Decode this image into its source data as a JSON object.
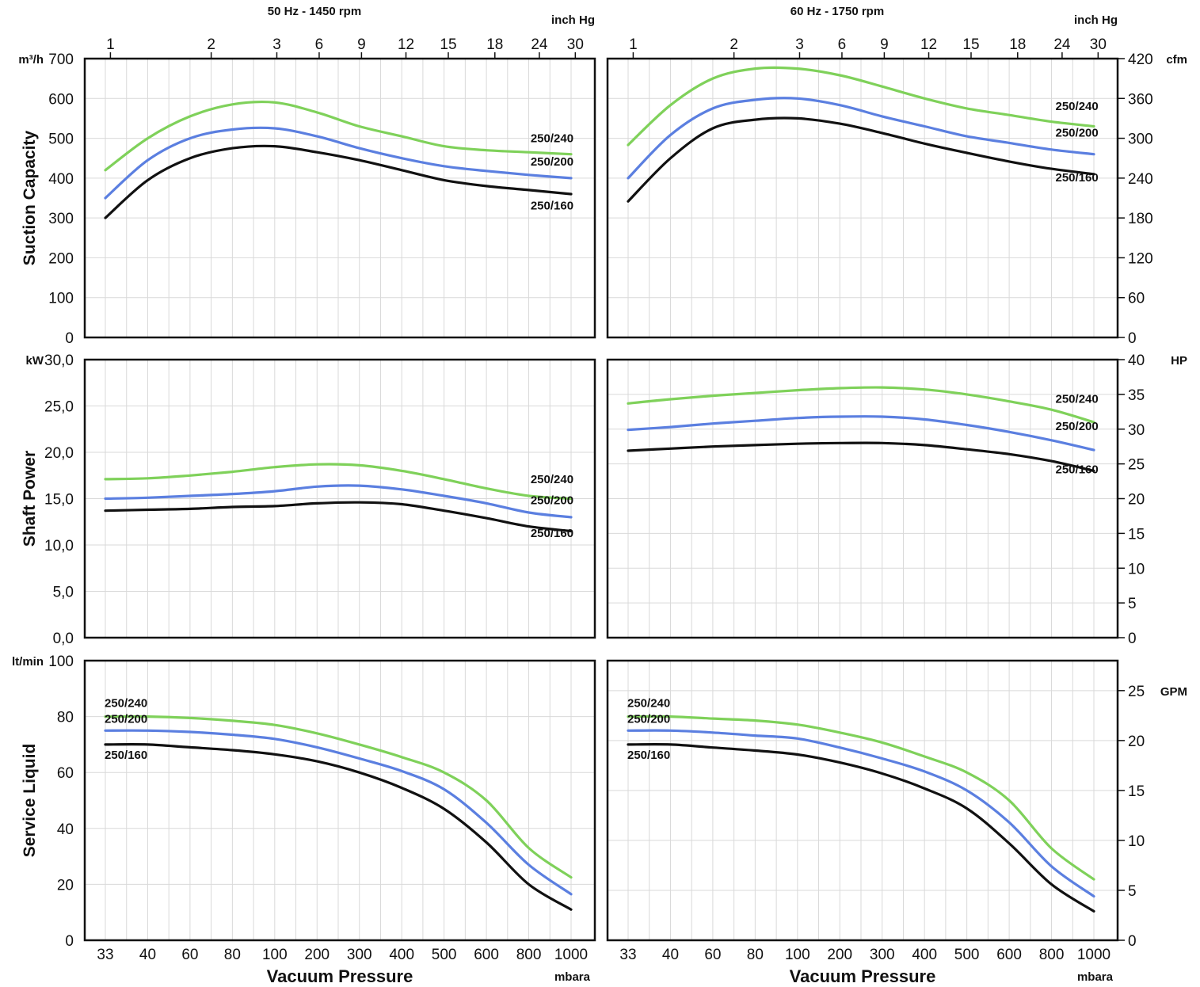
{
  "chart_data": {
    "type": "line",
    "x_unit": "mbara",
    "x": [
      "33",
      "40",
      "60",
      "80",
      "100",
      "200",
      "300",
      "400",
      "500",
      "600",
      "800",
      "1000"
    ],
    "inch_hg_ticks": [
      "1",
      "2",
      "3",
      "6",
      "9",
      "12",
      "15",
      "18",
      "24",
      "30"
    ],
    "inch_hg_unit": "inch Hg",
    "xlabel": "Vacuum Pressure",
    "colors": {
      "250/240": "#7fd15a",
      "250/200": "#5b7fe0",
      "250/160": "#111111"
    },
    "columns": [
      {
        "title": "50 Hz - 1450 rpm"
      },
      {
        "title": "60 Hz - 1750 rpm"
      }
    ],
    "panels": [
      {
        "id": "suction-50",
        "ylabel": "Suction Capacity",
        "unit": "m³/h",
        "yticks": [
          "0",
          "100",
          "200",
          "300",
          "400",
          "500",
          "600",
          "700"
        ],
        "ylim": [
          0,
          700
        ],
        "series": [
          {
            "name": "250/240",
            "values": [
              420,
              500,
              555,
              585,
              590,
              565,
              530,
              505,
              480,
              470,
              465,
              460
            ]
          },
          {
            "name": "250/200",
            "values": [
              350,
              445,
              500,
              522,
              525,
              505,
              475,
              450,
              430,
              418,
              408,
              400
            ]
          },
          {
            "name": "250/160",
            "values": [
              300,
              395,
              450,
              475,
              480,
              465,
              445,
              420,
              395,
              380,
              370,
              360
            ]
          }
        ]
      },
      {
        "id": "suction-60",
        "unit": "cfm",
        "yticks": [
          "0",
          "60",
          "120",
          "180",
          "240",
          "300",
          "360",
          "420"
        ],
        "ylim": [
          0,
          420
        ],
        "series": [
          {
            "name": "250/240",
            "values": [
              290,
              350,
              390,
              405,
              405,
              395,
              378,
              360,
              345,
              335,
              325,
              318
            ]
          },
          {
            "name": "250/200",
            "values": [
              240,
              305,
              345,
              358,
              360,
              350,
              333,
              318,
              303,
              293,
              283,
              276
            ]
          },
          {
            "name": "250/160",
            "values": [
              205,
              270,
              315,
              328,
              330,
              322,
              308,
              292,
              278,
              265,
              254,
              246
            ]
          }
        ]
      },
      {
        "id": "power-50",
        "ylabel": "Shaft Power",
        "unit": "kW",
        "yticks": [
          "0,0",
          "5,0",
          "10,0",
          "15,0",
          "20,0",
          "25,0",
          "30,0"
        ],
        "ylim": [
          0,
          30
        ],
        "series": [
          {
            "name": "250/240",
            "values": [
              17.1,
              17.2,
              17.5,
              17.9,
              18.4,
              18.7,
              18.6,
              18.0,
              17.1,
              16.1,
              15.3,
              15.0
            ]
          },
          {
            "name": "250/200",
            "values": [
              15.0,
              15.1,
              15.3,
              15.5,
              15.8,
              16.3,
              16.4,
              16.0,
              15.3,
              14.5,
              13.5,
              13.0
            ]
          },
          {
            "name": "250/160",
            "values": [
              13.7,
              13.8,
              13.9,
              14.1,
              14.2,
              14.5,
              14.6,
              14.4,
              13.7,
              12.9,
              12.0,
              11.5
            ]
          }
        ]
      },
      {
        "id": "power-60",
        "unit": "HP",
        "yticks": [
          "0",
          "5",
          "10",
          "15",
          "20",
          "25",
          "30",
          "35",
          "40"
        ],
        "ylim": [
          0,
          40
        ],
        "series": [
          {
            "name": "250/240",
            "values": [
              33.7,
              34.3,
              34.8,
              35.2,
              35.6,
              35.9,
              36.0,
              35.7,
              35.0,
              34.0,
              32.8,
              31.0
            ]
          },
          {
            "name": "250/200",
            "values": [
              29.9,
              30.3,
              30.8,
              31.2,
              31.6,
              31.8,
              31.8,
              31.4,
              30.6,
              29.6,
              28.4,
              27.0
            ]
          },
          {
            "name": "250/160",
            "values": [
              26.9,
              27.2,
              27.5,
              27.7,
              27.9,
              28.0,
              28.0,
              27.7,
              27.1,
              26.4,
              25.4,
              24.0
            ]
          }
        ]
      },
      {
        "id": "liquid-50",
        "ylabel": "Service Liquid",
        "unit": "lt/min",
        "yticks": [
          "0",
          "20",
          "40",
          "60",
          "80",
          "100"
        ],
        "ylim": [
          0,
          100
        ],
        "series": [
          {
            "name": "250/240",
            "values": [
              80.0,
              80.0,
              79.5,
              78.5,
              77.0,
              74.0,
              70.0,
              65.5,
              60.0,
              50.0,
              33.0,
              22.5
            ]
          },
          {
            "name": "250/200",
            "values": [
              75.0,
              75.0,
              74.5,
              73.5,
              72.0,
              69.0,
              65.0,
              60.5,
              54.0,
              42.0,
              27.0,
              16.5
            ]
          },
          {
            "name": "250/160",
            "values": [
              70.0,
              70.0,
              69.0,
              68.0,
              66.5,
              64.0,
              60.0,
              54.5,
              47.0,
              35.0,
              20.0,
              11.0
            ]
          }
        ]
      },
      {
        "id": "liquid-60",
        "unit": "GPM",
        "yticks": [
          "0",
          "5",
          "10",
          "15",
          "20",
          "25"
        ],
        "ylim": [
          0,
          28
        ],
        "series": [
          {
            "name": "250/240",
            "values": [
              22.4,
              22.4,
              22.2,
              22.0,
              21.6,
              20.8,
              19.8,
              18.4,
              16.8,
              14.0,
              9.2,
              6.1
            ]
          },
          {
            "name": "250/200",
            "values": [
              21.0,
              21.0,
              20.8,
              20.5,
              20.2,
              19.3,
              18.2,
              16.9,
              15.0,
              11.8,
              7.4,
              4.4
            ]
          },
          {
            "name": "250/160",
            "values": [
              19.6,
              19.6,
              19.3,
              19.0,
              18.6,
              17.8,
              16.7,
              15.2,
              13.2,
              9.7,
              5.6,
              2.9
            ]
          }
        ]
      }
    ]
  }
}
